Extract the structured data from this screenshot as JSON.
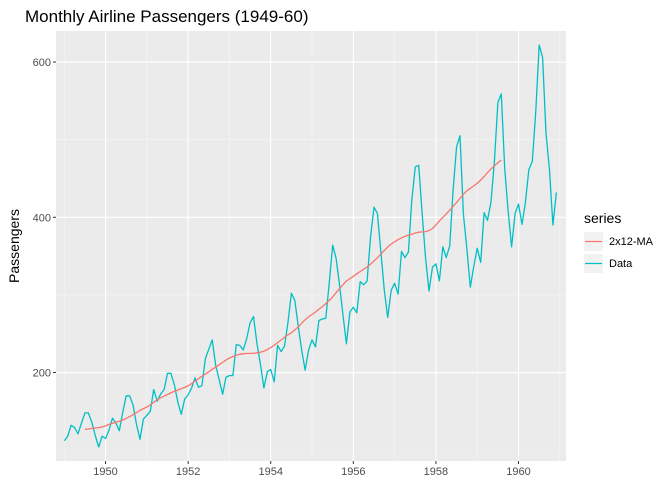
{
  "chart_data": {
    "type": "line",
    "title": "Monthly Airline Passengers (1949-60)",
    "xlabel": "",
    "ylabel": "Passengers",
    "xlim": [
      1948.8,
      1961.15
    ],
    "ylim": [
      86,
      640
    ],
    "x_ticks": [
      1950,
      1952,
      1954,
      1956,
      1958,
      1960
    ],
    "y_ticks": [
      200,
      400,
      600
    ],
    "grid": true,
    "legend": {
      "title": "series",
      "position": "right"
    },
    "series": [
      {
        "name": "2x12-MA",
        "color": "#F8766D",
        "x_start": 1949.5,
        "x_step": 0.08333333,
        "values": [
          126.8,
          127.2,
          127.9,
          128.6,
          129.0,
          129.8,
          131.2,
          133.1,
          134.5,
          135.8,
          137.3,
          138.8,
          140.9,
          143.2,
          145.7,
          148.3,
          151.0,
          153.5,
          155.6,
          158.3,
          161.5,
          164.8,
          167.4,
          169.5,
          171.7,
          173.7,
          175.7,
          177.5,
          179.1,
          180.8,
          182.8,
          185.7,
          188.9,
          192.1,
          195.1,
          197.9,
          200.9,
          204.0,
          207.0,
          210.0,
          213.0,
          216.0,
          218.6,
          220.6,
          222.2,
          223.5,
          224.3,
          224.5,
          224.6,
          224.8,
          225.4,
          226.2,
          227.5,
          229.5,
          232.1,
          235.2,
          238.5,
          241.9,
          245.3,
          248.5,
          251.3,
          254.8,
          258.9,
          263.5,
          268.1,
          271.6,
          274.7,
          278.0,
          281.4,
          284.9,
          288.6,
          292.9,
          297.6,
          302.8,
          308.3,
          313.1,
          318.0,
          320.8,
          323.9,
          327.2,
          330.1,
          333.0,
          336.1,
          339.6,
          343.7,
          347.9,
          352.5,
          357.3,
          361.7,
          365.4,
          368.4,
          371.2,
          373.5,
          375.4,
          376.8,
          378.1,
          379.7,
          380.8,
          381.2,
          381.6,
          382.9,
          385.5,
          390.0,
          395.3,
          399.9,
          404.4,
          409.0,
          414.2,
          419.2,
          424.3,
          429.6,
          434.2,
          437.4,
          440.4,
          443.6,
          447.9,
          452.6,
          457.6,
          462.3,
          466.3,
          470.2,
          473.7
        ]
      },
      {
        "name": "Data",
        "color": "#00BFC4",
        "x_start": 1949.0,
        "x_step": 0.08333333,
        "values": [
          112,
          118,
          132,
          129,
          121,
          135,
          148,
          148,
          136,
          119,
          104,
          118,
          115,
          126,
          141,
          135,
          125,
          149,
          170,
          170,
          158,
          133,
          114,
          140,
          145,
          150,
          178,
          163,
          172,
          178,
          199,
          199,
          184,
          162,
          146,
          166,
          171,
          180,
          193,
          181,
          183,
          218,
          230,
          242,
          209,
          191,
          172,
          194,
          196,
          196,
          236,
          235,
          229,
          243,
          264,
          272,
          237,
          211,
          180,
          201,
          204,
          188,
          235,
          227,
          234,
          264,
          302,
          293,
          259,
          229,
          203,
          229,
          242,
          233,
          267,
          269,
          270,
          315,
          364,
          347,
          312,
          274,
          237,
          278,
          284,
          277,
          317,
          313,
          318,
          374,
          413,
          405,
          355,
          306,
          271,
          306,
          315,
          301,
          356,
          348,
          355,
          422,
          465,
          467,
          404,
          347,
          305,
          336,
          340,
          318,
          362,
          348,
          363,
          435,
          491,
          505,
          404,
          359,
          310,
          337,
          360,
          342,
          406,
          396,
          420,
          472,
          548,
          559,
          463,
          407,
          362,
          405,
          417,
          391,
          419,
          461,
          472,
          535,
          622,
          606,
          508,
          461,
          390,
          432
        ]
      }
    ]
  }
}
